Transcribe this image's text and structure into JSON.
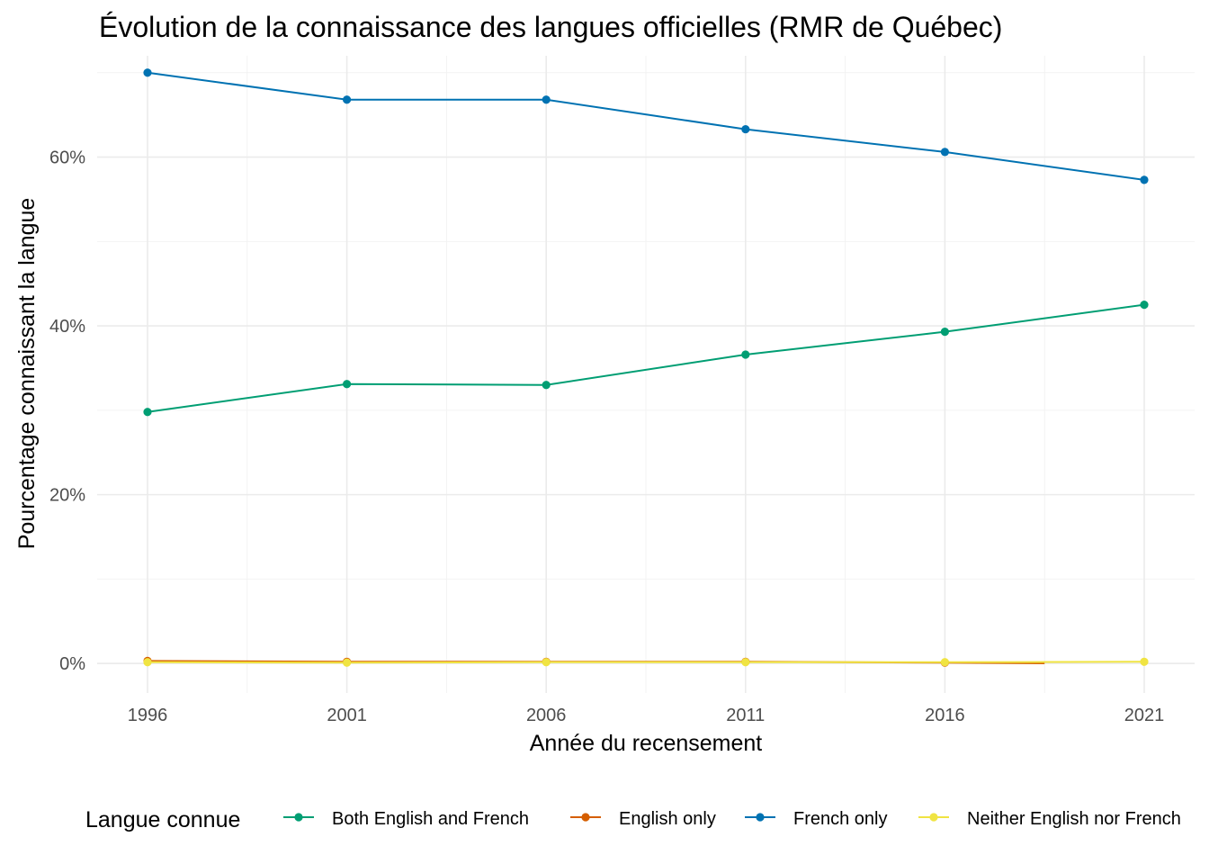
{
  "chart_data": {
    "type": "line",
    "title": "Évolution de la connaissance des langues officielles (RMR de Québec)",
    "xlabel": "Année du recensement",
    "ylabel": "Pourcentage connaissant la langue",
    "x": [
      1996,
      2001,
      2006,
      2011,
      2016,
      2021
    ],
    "x_tick_labels": [
      "1996",
      "2001",
      "2006",
      "2011",
      "2016",
      "2021"
    ],
    "ylim": [
      -0.035,
      0.72
    ],
    "y_ticks": [
      0,
      0.2,
      0.4,
      0.6
    ],
    "y_tick_labels": [
      "0%",
      "20%",
      "40%",
      "60%"
    ],
    "grid": true,
    "legend": {
      "title": "Langue connue",
      "position": "bottom"
    },
    "series": [
      {
        "name": "Both English and French",
        "color": "#009E73",
        "values": [
          0.298,
          0.331,
          0.33,
          0.366,
          0.393,
          0.425
        ]
      },
      {
        "name": "English only",
        "color": "#D55E00",
        "values": [
          0.003,
          0.002,
          0.002,
          0.002,
          0.001,
          null
        ]
      },
      {
        "name": "French only",
        "color": "#0072B2",
        "values": [
          0.7,
          0.668,
          0.668,
          0.633,
          0.606,
          0.573
        ]
      },
      {
        "name": "Neither English nor French",
        "color": "#F0E442",
        "values": [
          0.0015,
          0.001,
          0.0015,
          0.0015,
          0.0015,
          0.002
        ]
      }
    ]
  }
}
